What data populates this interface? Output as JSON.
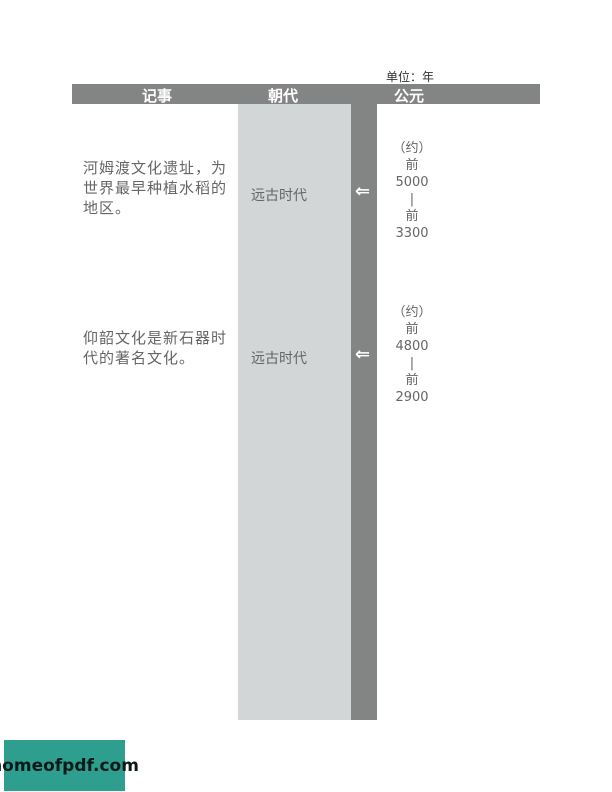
{
  "unit_label": "单位：年",
  "header": {
    "col_events": "记事",
    "col_dynasty": "朝代",
    "col_year": "公元"
  },
  "rows": [
    {
      "event": "河姆渡文化遗址，为世界最早种植水稻的地区。",
      "dynasty": "远古时代",
      "arrow": "⇐",
      "date": [
        "（约）",
        "前",
        "5000",
        "|",
        "前",
        "3300"
      ]
    },
    {
      "event": "仰韶文化是新石器时代的著名文化。",
      "dynasty": "远古时代",
      "arrow": "⇐",
      "date": [
        "（约）",
        "前",
        "4800",
        "|",
        "前",
        "2900"
      ]
    }
  ],
  "watermark": "homeofpdf.com"
}
